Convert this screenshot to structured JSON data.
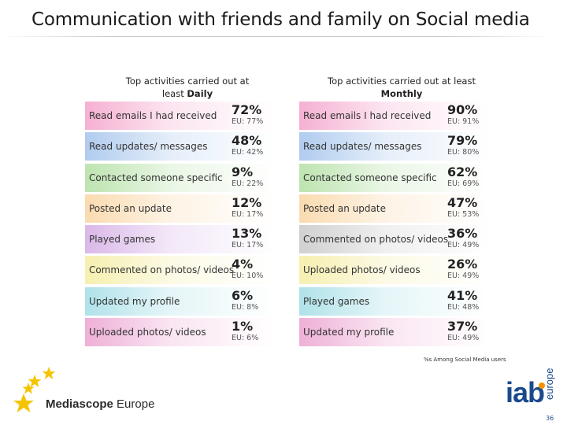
{
  "title": "Communication with friends and family on Social media",
  "daily": {
    "heading_line1": "Top activities carried out  at",
    "heading_line2_pre": "least ",
    "heading_line2_bold": "Daily",
    "rows": [
      {
        "label": "Read emails I had received",
        "pct": "72%",
        "eu": "EU: 77%",
        "color": "#e83a8e"
      },
      {
        "label": "Read updates/ messages",
        "pct": "48%",
        "eu": "EU: 42%",
        "color": "#3a7fd6"
      },
      {
        "label": "Contacted someone specific",
        "pct": "9%",
        "eu": "EU: 22%",
        "color": "#5bbb3a"
      },
      {
        "label": "Posted an update",
        "pct": "12%",
        "eu": "EU: 17%",
        "color": "#f2a53a"
      },
      {
        "label": "Played games",
        "pct": "13%",
        "eu": "EU: 17%",
        "color": "#a34fc8"
      },
      {
        "label": "Commented on photos/ videos",
        "pct": "4%",
        "eu": "EU: 10%",
        "color": "#e8d83a"
      },
      {
        "label": "Updated my profile",
        "pct": "6%",
        "eu": "EU: 8%",
        "color": "#3ab7c9"
      },
      {
        "label": "Uploaded photos/ videos",
        "pct": "1%",
        "eu": "EU: 6%",
        "color": "#d63a9a"
      }
    ]
  },
  "monthly": {
    "heading_line1": "Top activities carried out at least",
    "heading_line2_bold": "Monthly",
    "rows": [
      {
        "label": "Read emails I had received",
        "pct": "90%",
        "eu": "EU: 91%",
        "color": "#e83a8e"
      },
      {
        "label": "Read updates/ messages",
        "pct": "79%",
        "eu": "EU: 80%",
        "color": "#3a7fd6"
      },
      {
        "label": "Contacted someone specific",
        "pct": "62%",
        "eu": "EU: 69%",
        "color": "#5bbb3a"
      },
      {
        "label": "Posted an update",
        "pct": "47%",
        "eu": "EU: 53%",
        "color": "#f2a53a"
      },
      {
        "label": "Commented on photos/ videos",
        "pct": "36%",
        "eu": "EU: 49%",
        "color": "#8a8a8a"
      },
      {
        "label": "Uploaded photos/ videos",
        "pct": "26%",
        "eu": "EU: 49%",
        "color": "#e8d83a"
      },
      {
        "label": "Played games",
        "pct": "41%",
        "eu": "EU: 48%",
        "color": "#3ab7c9"
      },
      {
        "label": "Updated my profile",
        "pct": "37%",
        "eu": "EU: 49%",
        "color": "#d63a9a"
      }
    ]
  },
  "note": "%s Among Social Media users",
  "footer": {
    "brand_bold": "Mediascope",
    "brand_regular": " Europe",
    "iab": "iab",
    "iab_sub": "europe",
    "page_number": "36"
  },
  "icons": {
    "stars": "eu-stars-icon",
    "iab_dot": "orange-dot-icon"
  }
}
